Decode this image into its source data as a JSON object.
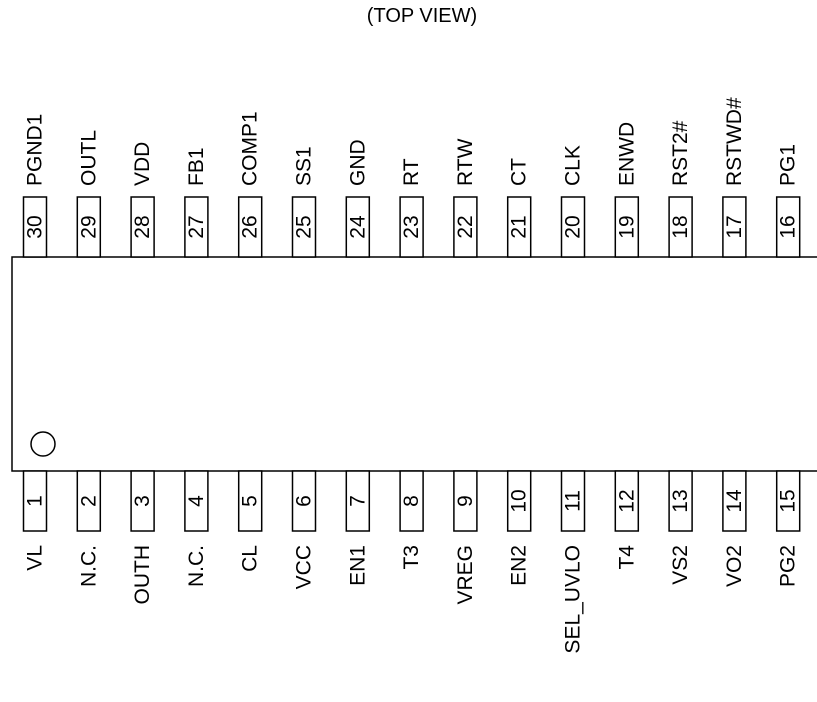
{
  "view_label": "(TOP VIEW)",
  "top_pins": [
    {
      "num": "30",
      "name": "PGND1"
    },
    {
      "num": "29",
      "name": "OUTL"
    },
    {
      "num": "28",
      "name": "VDD"
    },
    {
      "num": "27",
      "name": "FB1"
    },
    {
      "num": "26",
      "name": "COMP1"
    },
    {
      "num": "25",
      "name": "SS1"
    },
    {
      "num": "24",
      "name": "GND"
    },
    {
      "num": "23",
      "name": "RT"
    },
    {
      "num": "22",
      "name": "RTW"
    },
    {
      "num": "21",
      "name": "CT"
    },
    {
      "num": "20",
      "name": "CLK"
    },
    {
      "num": "19",
      "name": "ENWD"
    },
    {
      "num": "18",
      "name": "RST2#"
    },
    {
      "num": "17",
      "name": "RSTWD#"
    },
    {
      "num": "16",
      "name": "PG1"
    }
  ],
  "bottom_pins": [
    {
      "num": "1",
      "name": "VL"
    },
    {
      "num": "2",
      "name": "N.C."
    },
    {
      "num": "3",
      "name": "OUTH"
    },
    {
      "num": "4",
      "name": "N.C."
    },
    {
      "num": "5",
      "name": "CL"
    },
    {
      "num": "6",
      "name": "VCC"
    },
    {
      "num": "7",
      "name": "EN1"
    },
    {
      "num": "8",
      "name": "T3"
    },
    {
      "num": "9",
      "name": "VREG"
    },
    {
      "num": "10",
      "name": "EN2"
    },
    {
      "num": "11",
      "name": "SEL_UVLO"
    },
    {
      "num": "12",
      "name": "T4"
    },
    {
      "num": "13",
      "name": "VS2"
    },
    {
      "num": "14",
      "name": "VO2"
    },
    {
      "num": "15",
      "name": "PG2"
    }
  ]
}
